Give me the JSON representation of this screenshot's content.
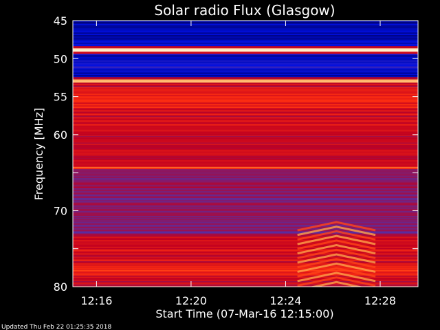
{
  "chart_data": {
    "type": "heatmap",
    "title": "Solar radio Flux (Glasgow)",
    "xlabel": "Start Time (07-Mar-16 12:15:00)",
    "ylabel": "Frequency [MHz]",
    "x_tick_labels": [
      "12:16",
      "12:20",
      "12:24",
      "12:28"
    ],
    "x_tick_minutes": [
      1,
      5,
      9,
      13
    ],
    "xlim_minutes": [
      0,
      14.6
    ],
    "y_ticks": [
      45,
      50,
      55,
      60,
      65,
      70,
      75,
      80
    ],
    "y_tick_labels": [
      "45",
      "50",
      "55",
      "60",
      "",
      "70",
      "",
      "80"
    ],
    "ylim": [
      45,
      80
    ],
    "y_inverted": true,
    "footer": "Updated Thu Feb 22 01:25:35 2018",
    "colormap": [
      "#00006a",
      "#0010e0",
      "#5a2ea0",
      "#c00020",
      "#ff3010",
      "#ff9a3a",
      "#fff2d0"
    ],
    "bands": [
      {
        "f0": 45.0,
        "f1": 46.0,
        "level": 0.05
      },
      {
        "f0": 46.0,
        "f1": 47.7,
        "level": 0.08
      },
      {
        "f0": 47.7,
        "f1": 48.4,
        "level": 0.14
      },
      {
        "f0": 48.4,
        "f1": 48.7,
        "level": 0.5
      },
      {
        "f0": 48.7,
        "f1": 49.1,
        "level": 0.98
      },
      {
        "f0": 49.1,
        "f1": 49.4,
        "level": 0.55
      },
      {
        "f0": 49.4,
        "f1": 50.6,
        "level": 0.12
      },
      {
        "f0": 50.6,
        "f1": 51.4,
        "level": 0.18
      },
      {
        "f0": 51.4,
        "f1": 52.5,
        "level": 0.1
      },
      {
        "f0": 52.5,
        "f1": 52.8,
        "level": 0.45
      },
      {
        "f0": 52.8,
        "f1": 53.1,
        "level": 0.88
      },
      {
        "f0": 53.1,
        "f1": 53.8,
        "level": 0.5
      },
      {
        "f0": 53.8,
        "f1": 56.5,
        "level": 0.6
      },
      {
        "f0": 56.5,
        "f1": 59.5,
        "level": 0.52
      },
      {
        "f0": 59.5,
        "f1": 64.2,
        "level": 0.5
      },
      {
        "f0": 64.2,
        "f1": 64.6,
        "level": 0.68
      },
      {
        "f0": 64.6,
        "f1": 71.0,
        "level": 0.4
      },
      {
        "f0": 71.0,
        "f1": 73.2,
        "level": 0.37
      },
      {
        "f0": 73.2,
        "f1": 77.0,
        "level": 0.52
      },
      {
        "f0": 77.0,
        "f1": 78.5,
        "level": 0.58
      },
      {
        "f0": 78.5,
        "f1": 80.0,
        "level": 0.5
      }
    ],
    "burst": {
      "t0": 9.5,
      "t1": 12.8,
      "f0": 71.5,
      "f1": 80.0,
      "level": 0.7
    }
  }
}
